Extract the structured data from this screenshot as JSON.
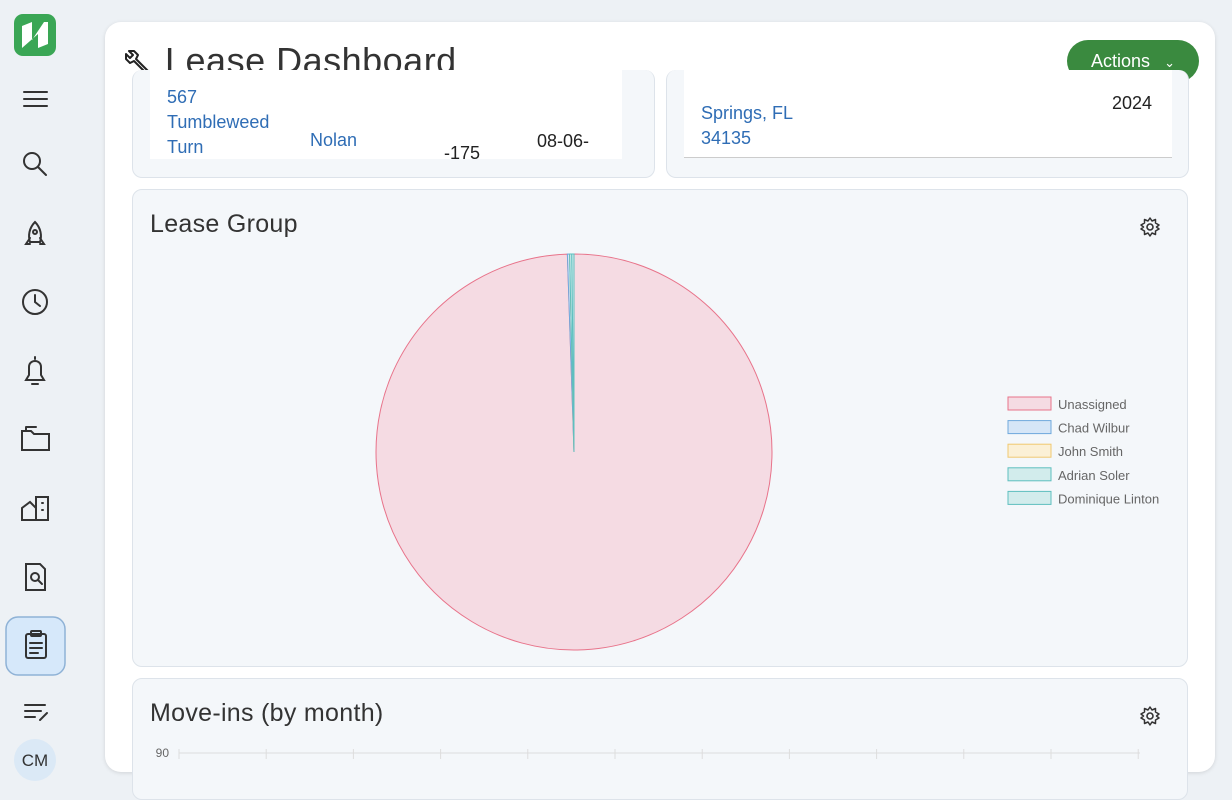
{
  "sidebar": {
    "user_initials": "CM"
  },
  "header": {
    "title": "Lease Dashboard",
    "actions_button": "Actions"
  },
  "top_cards": {
    "left": {
      "address": [
        "567",
        "Tumbleweed",
        "Turn"
      ],
      "name": "Nolan",
      "amount": "-175",
      "date": "08-06-"
    },
    "right": {
      "city": [
        "Springs, FL",
        "34135"
      ],
      "year": "2024"
    }
  },
  "lease_group": {
    "title": "Lease Group",
    "chart_data": {
      "type": "pie",
      "categories": [
        "Unassigned",
        "Chad Wilbur",
        "John Smith",
        "Adrian Soler",
        "Dominique Linton"
      ],
      "values": [
        560,
        1,
        0,
        1,
        1
      ],
      "colors": [
        "#f5dbe3",
        "#d6e6f7",
        "#fbf0d6",
        "#d2ecec",
        "#d2ecec"
      ],
      "borders": [
        "#e8738a",
        "#6fa8dc",
        "#f0c870",
        "#5ebfbf",
        "#5ebfbf"
      ],
      "legend": "right"
    }
  },
  "move_ins": {
    "title": "Move-ins (by month)",
    "chart_data": {
      "type": "bar",
      "yticks": [
        90
      ]
    }
  }
}
